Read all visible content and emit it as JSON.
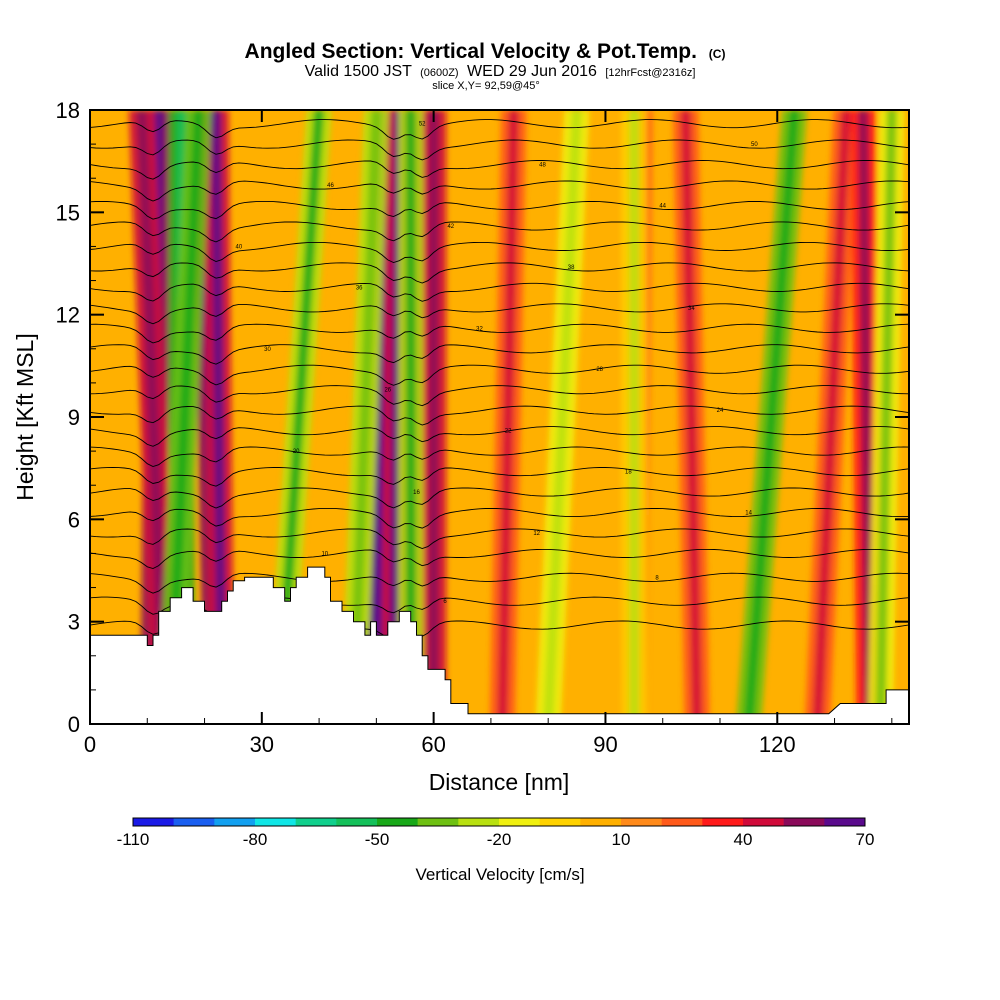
{
  "chart_data": {
    "type": "heatmap",
    "title": "Angled Section: Vertical Velocity & Pot.Temp.",
    "title_units": "(C)",
    "subtitle": {
      "prefix": "Valid 1500 JST",
      "zulu": "(0600Z)",
      "date": "WED 29 Jun 2016",
      "forecast": "[12hrFcst@2316z]"
    },
    "slice_label": "slice X,Y= 92,59@45°",
    "xlabel": "Distance [nm]",
    "ylabel": "Height [Kft MSL]",
    "xlim": [
      0,
      143
    ],
    "ylim": [
      0,
      18
    ],
    "x_ticks": [
      "0",
      "30",
      "60",
      "90",
      "120"
    ],
    "y_ticks": [
      "0",
      "3",
      "6",
      "9",
      "12",
      "15",
      "18"
    ],
    "colorbar": {
      "label": "Vertical Velocity [cm/s]",
      "tick_labels": [
        "-110",
        "-80",
        "-50",
        "-20",
        "10",
        "40",
        "70"
      ],
      "min": -110,
      "max": 70,
      "step": 10,
      "colors": [
        "#1a1ae6",
        "#1a5ff0",
        "#12a0f0",
        "#10e6e6",
        "#10cf8c",
        "#14c05a",
        "#18a818",
        "#6ec012",
        "#b8e010",
        "#f0f010",
        "#ffd200",
        "#ffb000",
        "#ff8a1a",
        "#ff5a1a",
        "#ff1a1a",
        "#d00a3a",
        "#8a0a5a",
        "#5a0a8c"
      ]
    },
    "background_field_value": 5,
    "updraft_bands": [
      {
        "x_base": 11,
        "x_top": 12,
        "value": 50
      },
      {
        "x_base": 13,
        "x_top": 9,
        "value": 40
      },
      {
        "x_base": 22,
        "x_top": 20,
        "value": 55
      },
      {
        "x_base": 23,
        "x_top": 22,
        "value": 45
      },
      {
        "x_base": 50,
        "x_top": 53,
        "value": 60
      },
      {
        "x_base": 53,
        "x_top": 54,
        "value": 45
      },
      {
        "x_base": 56,
        "x_top": 58,
        "value": 35
      },
      {
        "x_base": 60,
        "x_top": 60,
        "value": 40
      },
      {
        "x_base": 72,
        "x_top": 74,
        "value": 25
      },
      {
        "x_base": 95,
        "x_top": 96,
        "value": 20
      },
      {
        "x_base": 106,
        "x_top": 104,
        "value": 25
      },
      {
        "x_base": 127,
        "x_top": 132,
        "value": 25
      },
      {
        "x_base": 136,
        "x_top": 135,
        "value": 35
      }
    ],
    "downdraft_bands": [
      {
        "x_base": 16,
        "x_top": 16,
        "value": -45
      },
      {
        "x_base": 14,
        "x_top": 19,
        "value": -35
      },
      {
        "x_base": 33,
        "x_top": 40,
        "value": -30
      },
      {
        "x_base": 46,
        "x_top": 50,
        "value": -25
      },
      {
        "x_base": 56,
        "x_top": 56,
        "value": -30
      },
      {
        "x_base": 80,
        "x_top": 85,
        "value": -15
      },
      {
        "x_base": 95,
        "x_top": 95,
        "value": -10
      },
      {
        "x_base": 115,
        "x_top": 123,
        "value": -35
      },
      {
        "x_base": 138,
        "x_top": 140,
        "value": -20
      }
    ],
    "terrain": [
      [
        0,
        2.6
      ],
      [
        10,
        2.6
      ],
      [
        10,
        2.3
      ],
      [
        11,
        2.3
      ],
      [
        11,
        2.6
      ],
      [
        12,
        2.6
      ],
      [
        12,
        3.3
      ],
      [
        14,
        3.3
      ],
      [
        14,
        3.7
      ],
      [
        16,
        3.7
      ],
      [
        16,
        4
      ],
      [
        18,
        4
      ],
      [
        18,
        3.6
      ],
      [
        20,
        3.6
      ],
      [
        20,
        3.3
      ],
      [
        23,
        3.3
      ],
      [
        23,
        3.6
      ],
      [
        24,
        3.6
      ],
      [
        24,
        3.9
      ],
      [
        25,
        3.9
      ],
      [
        25,
        4.2
      ],
      [
        27,
        4.2
      ],
      [
        27,
        4.3
      ],
      [
        32,
        4.3
      ],
      [
        32,
        4
      ],
      [
        34,
        4
      ],
      [
        34,
        3.6
      ],
      [
        35,
        3.6
      ],
      [
        35,
        4
      ],
      [
        36,
        4
      ],
      [
        36,
        4.3
      ],
      [
        38,
        4.3
      ],
      [
        38,
        4.6
      ],
      [
        41,
        4.6
      ],
      [
        41,
        4.3
      ],
      [
        42,
        4.3
      ],
      [
        42,
        3.6
      ],
      [
        44,
        3.6
      ],
      [
        44,
        3.3
      ],
      [
        46,
        3.3
      ],
      [
        46,
        3
      ],
      [
        48,
        3
      ],
      [
        48,
        2.6
      ],
      [
        49,
        2.6
      ],
      [
        49,
        3
      ],
      [
        50,
        3
      ],
      [
        50,
        2.6
      ],
      [
        52,
        2.6
      ],
      [
        52,
        3
      ],
      [
        54,
        3
      ],
      [
        54,
        3.3
      ],
      [
        56,
        3.3
      ],
      [
        56,
        3
      ],
      [
        57,
        3
      ],
      [
        57,
        2.6
      ],
      [
        58,
        2.6
      ],
      [
        58,
        2
      ],
      [
        59,
        2
      ],
      [
        59,
        1.6
      ],
      [
        62,
        1.6
      ],
      [
        62,
        1.3
      ],
      [
        63,
        1.3
      ],
      [
        63,
        0.6
      ],
      [
        66,
        0.6
      ],
      [
        66,
        0.3
      ],
      [
        100,
        0.3
      ],
      [
        100,
        0.3
      ],
      [
        113,
        0.3
      ],
      [
        113,
        0.3
      ],
      [
        129,
        0.3
      ],
      [
        129,
        0.3
      ],
      [
        131,
        0.6
      ],
      [
        139,
        0.6
      ],
      [
        139,
        1
      ],
      [
        143,
        1
      ],
      [
        143,
        0
      ],
      [
        0,
        0
      ]
    ],
    "isentropes": [
      {
        "base": 2.9,
        "label": "4"
      },
      {
        "base": 3.6,
        "label": "6"
      },
      {
        "base": 4.3,
        "label": "8"
      },
      {
        "base": 5.0,
        "label": "10"
      },
      {
        "base": 5.6,
        "label": "12"
      },
      {
        "base": 6.2,
        "label": "14"
      },
      {
        "base": 6.8,
        "label": "16"
      },
      {
        "base": 7.4,
        "label": "18"
      },
      {
        "base": 8.0,
        "label": "20"
      },
      {
        "base": 8.6,
        "label": "22"
      },
      {
        "base": 9.2,
        "label": "24"
      },
      {
        "base": 9.8,
        "label": "26"
      },
      {
        "base": 10.4,
        "label": "28"
      },
      {
        "base": 11.0,
        "label": "30"
      },
      {
        "base": 11.6,
        "label": "32"
      },
      {
        "base": 12.2,
        "label": "34"
      },
      {
        "base": 12.8,
        "label": "36"
      },
      {
        "base": 13.4,
        "label": "38"
      },
      {
        "base": 14.0,
        "label": "40"
      },
      {
        "base": 14.6,
        "label": "42"
      },
      {
        "base": 15.2,
        "label": "44"
      },
      {
        "base": 15.8,
        "label": "46"
      },
      {
        "base": 16.4,
        "label": "48"
      },
      {
        "base": 17.0,
        "label": "50"
      },
      {
        "base": 17.6,
        "label": "52"
      }
    ]
  }
}
